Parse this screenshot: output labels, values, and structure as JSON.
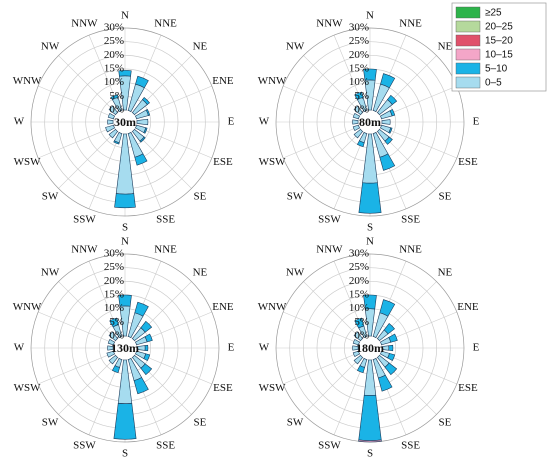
{
  "legend": [
    {
      "name": "≥25",
      "color": "#2db34a"
    },
    {
      "name": "20–25",
      "color": "#b5d99c"
    },
    {
      "name": "15–20",
      "color": "#e0516b"
    },
    {
      "name": "10–15",
      "color": "#f4a6c8"
    },
    {
      "name": "5–10",
      "color": "#1ab3e6"
    },
    {
      "name": "0–5",
      "color": "#a6dcef"
    }
  ],
  "chart_data": [
    {
      "type": "windrose",
      "title": "30m",
      "categories": [
        "N",
        "NNE",
        "NE",
        "ENE",
        "E",
        "ESE",
        "SE",
        "SSE",
        "S",
        "SSW",
        "SW",
        "WSW",
        "W",
        "WNW",
        "NW",
        "NNW"
      ],
      "rlim": [
        0,
        30
      ],
      "rticks": [
        {
          "value": 0,
          "label": "0%"
        },
        {
          "value": 5,
          "label": "5%"
        },
        {
          "value": 10,
          "label": "10%"
        },
        {
          "value": 15,
          "label": "15%"
        },
        {
          "value": 20,
          "label": "20%"
        },
        {
          "value": 25,
          "label": "25%"
        },
        {
          "value": 30,
          "label": "30%"
        }
      ],
      "series": [
        {
          "name": "0–5",
          "color": "#a6dcef",
          "values": [
            12.5,
            10,
            6,
            4.5,
            4,
            3.5,
            4.5,
            9,
            22,
            3.5,
            3,
            3,
            2,
            2,
            3,
            5
          ]
        },
        {
          "name": "5–10",
          "color": "#1ab3e6",
          "values": [
            2,
            3,
            1,
            0.5,
            0,
            0.5,
            0.5,
            3,
            5,
            0.5,
            0,
            0,
            0,
            0,
            0,
            1
          ]
        },
        {
          "name": "10–15",
          "color": "#f4a6c8",
          "values": [
            0,
            0,
            0,
            0,
            0,
            0,
            0,
            0,
            0,
            0,
            0,
            0,
            0,
            0,
            0,
            0
          ]
        },
        {
          "name": "15–20",
          "color": "#e0516b",
          "values": [
            0,
            0,
            0,
            0,
            0,
            0,
            0,
            0,
            0,
            0,
            0,
            0,
            0,
            0,
            0,
            0
          ]
        },
        {
          "name": "20–25",
          "color": "#b5d99c",
          "values": [
            0,
            0,
            0,
            0,
            0,
            0,
            0,
            0,
            0,
            0,
            0,
            0,
            0,
            0,
            0,
            0
          ]
        },
        {
          "name": "≥25",
          "color": "#2db34a",
          "values": [
            0,
            0,
            0,
            0,
            0,
            0,
            0,
            0,
            0,
            0,
            0,
            0,
            0,
            0,
            0,
            0
          ]
        }
      ]
    },
    {
      "type": "windrose",
      "title": "80m",
      "categories": [
        "N",
        "NNE",
        "NE",
        "ENE",
        "E",
        "ESE",
        "SE",
        "SSE",
        "S",
        "SSW",
        "SW",
        "WSW",
        "W",
        "WNW",
        "NW",
        "NNW"
      ],
      "rlim": [
        0,
        30
      ],
      "rticks": [
        {
          "value": 0,
          "label": "0%"
        },
        {
          "value": 5,
          "label": "5%"
        },
        {
          "value": 10,
          "label": "10%"
        },
        {
          "value": 15,
          "label": "15%"
        },
        {
          "value": 20,
          "label": "20%"
        },
        {
          "value": 25,
          "label": "25%"
        },
        {
          "value": 30,
          "label": "30%"
        }
      ],
      "series": [
        {
          "name": "0–5",
          "color": "#a6dcef",
          "values": [
            11,
            10,
            6,
            4,
            3,
            3.5,
            4.5,
            9,
            18,
            3.5,
            3,
            2,
            2,
            2,
            3,
            5
          ]
        },
        {
          "name": "5–10",
          "color": "#1ab3e6",
          "values": [
            4,
            4,
            2,
            1,
            0,
            0.5,
            1.5,
            5,
            11,
            1.5,
            0,
            0,
            0,
            0,
            0,
            2
          ]
        },
        {
          "name": "10–15",
          "color": "#f4a6c8",
          "values": [
            0,
            0,
            0,
            0,
            0,
            0,
            0,
            0,
            0,
            0,
            0,
            0,
            0,
            0,
            0,
            0
          ]
        },
        {
          "name": "15–20",
          "color": "#e0516b",
          "values": [
            0,
            0,
            0,
            0,
            0,
            0,
            0,
            0,
            0,
            0,
            0,
            0,
            0,
            0,
            0,
            0
          ]
        },
        {
          "name": "20–25",
          "color": "#b5d99c",
          "values": [
            0,
            0,
            0,
            0,
            0,
            0,
            0,
            0,
            0,
            0,
            0,
            0,
            0,
            0,
            0,
            0
          ]
        },
        {
          "name": "≥25",
          "color": "#2db34a",
          "values": [
            0,
            0,
            0,
            0,
            0,
            0,
            0,
            0,
            0,
            0,
            0,
            0,
            0,
            0,
            0,
            0
          ]
        }
      ]
    },
    {
      "type": "windrose",
      "title": "130m",
      "categories": [
        "N",
        "NNE",
        "NE",
        "ENE",
        "E",
        "ESE",
        "SE",
        "SSE",
        "S",
        "SSW",
        "SW",
        "WSW",
        "W",
        "WNW",
        "NW",
        "NNW"
      ],
      "rlim": [
        0,
        30
      ],
      "rticks": [
        {
          "value": 0,
          "label": "0%"
        },
        {
          "value": 5,
          "label": "5%"
        },
        {
          "value": 10,
          "label": "10%"
        },
        {
          "value": 15,
          "label": "15%"
        },
        {
          "value": 20,
          "label": "20%"
        },
        {
          "value": 25,
          "label": "25%"
        },
        {
          "value": 30,
          "label": "30%"
        }
      ],
      "series": [
        {
          "name": "0–5",
          "color": "#a6dcef",
          "values": [
            11,
            9,
            5,
            4,
            3,
            3.5,
            5,
            8,
            16,
            3,
            3,
            2.5,
            2,
            2,
            3,
            4.5
          ]
        },
        {
          "name": "5–10",
          "color": "#1ab3e6",
          "values": [
            4,
            4,
            3,
            2,
            1,
            1.5,
            3,
            5,
            13,
            2,
            0,
            0,
            0,
            0,
            0,
            2.5
          ]
        },
        {
          "name": "10–15",
          "color": "#f4a6c8",
          "values": [
            0,
            0,
            0,
            0,
            0,
            0,
            0,
            0,
            0,
            0,
            0,
            0,
            0,
            0,
            0,
            0
          ]
        },
        {
          "name": "15–20",
          "color": "#e0516b",
          "values": [
            0,
            0,
            0,
            0,
            0,
            0,
            0,
            0,
            0,
            0,
            0,
            0,
            0,
            0,
            0,
            0
          ]
        },
        {
          "name": "20–25",
          "color": "#b5d99c",
          "values": [
            0,
            0,
            0,
            0,
            0,
            0,
            0,
            0,
            0,
            0,
            0,
            0,
            0,
            0,
            0,
            0
          ]
        },
        {
          "name": "≥25",
          "color": "#2db34a",
          "values": [
            0,
            0,
            0,
            0,
            0,
            0,
            0,
            0,
            0,
            0,
            0,
            0,
            0,
            0,
            0,
            0
          ]
        }
      ]
    },
    {
      "type": "windrose",
      "title": "180m",
      "categories": [
        "N",
        "NNE",
        "NE",
        "ENE",
        "E",
        "ESE",
        "SE",
        "SSE",
        "S",
        "SSW",
        "SW",
        "WSW",
        "W",
        "WNW",
        "NW",
        "NNW"
      ],
      "rlim": [
        0,
        30
      ],
      "rticks": [
        {
          "value": 0,
          "label": "0%"
        },
        {
          "value": 5,
          "label": "5%"
        },
        {
          "value": 10,
          "label": "10%"
        },
        {
          "value": 15,
          "label": "15%"
        },
        {
          "value": 20,
          "label": "20%"
        },
        {
          "value": 25,
          "label": "25%"
        },
        {
          "value": 30,
          "label": "30%"
        }
      ],
      "series": [
        {
          "name": "0–5",
          "color": "#a6dcef",
          "values": [
            10,
            9,
            4,
            3.5,
            2.5,
            3,
            4.5,
            7,
            13,
            3,
            3,
            2,
            2,
            2,
            3,
            4
          ]
        },
        {
          "name": "5–10",
          "color": "#1ab3e6",
          "values": [
            5,
            5,
            3,
            2.5,
            1.5,
            2,
            3.5,
            5,
            16.5,
            2,
            0,
            0,
            0,
            0,
            0,
            3
          ]
        },
        {
          "name": "10–15",
          "color": "#f4a6c8",
          "values": [
            0,
            0,
            0,
            0,
            0,
            0,
            0,
            0,
            0.5,
            0,
            0,
            0,
            0,
            0,
            0,
            0
          ]
        },
        {
          "name": "15–20",
          "color": "#e0516b",
          "values": [
            0,
            0,
            0,
            0,
            0,
            0,
            0,
            0,
            0,
            0,
            0,
            0,
            0,
            0,
            0,
            0
          ]
        },
        {
          "name": "20–25",
          "color": "#b5d99c",
          "values": [
            0,
            0,
            0,
            0,
            0,
            0,
            0,
            0,
            0,
            0,
            0,
            0,
            0,
            0,
            0,
            0
          ]
        },
        {
          "name": "≥25",
          "color": "#2db34a",
          "values": [
            0,
            0,
            0,
            0,
            0,
            0,
            0,
            0,
            0,
            0,
            0,
            0,
            0,
            0,
            0,
            0
          ]
        }
      ]
    }
  ]
}
